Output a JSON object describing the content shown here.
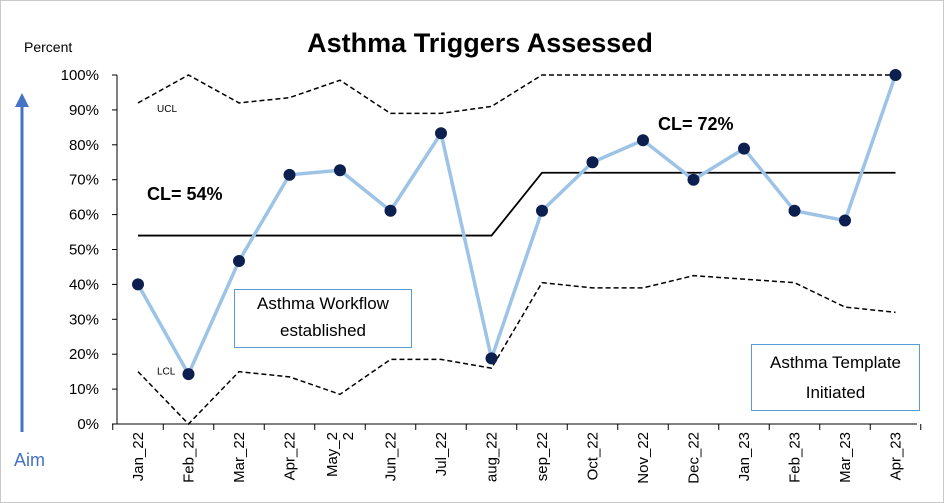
{
  "chart_data": {
    "type": "line",
    "title": "Asthma Triggers Assessed",
    "ylabel": "Percent",
    "ylim": [
      0,
      100
    ],
    "yticks": [
      "0%",
      "10%",
      "20%",
      "30%",
      "40%",
      "50%",
      "60%",
      "70%",
      "80%",
      "90%",
      "100%"
    ],
    "categories": [
      "Jan_22",
      "Feb_22",
      "Mar_22",
      "Apr_22",
      "May_2\n2",
      "Jun_22",
      "Jul_22",
      "aug_22",
      "sep_22",
      "Oct_22",
      "Nov_22",
      "Dec_22",
      "Jan_23",
      "Feb_23",
      "Mar_23",
      "Apr_23"
    ],
    "series": [
      {
        "values": [
          40,
          14.3,
          46.7,
          71.4,
          72.7,
          61.1,
          83.3,
          18.8,
          61.1,
          75,
          81.3,
          70,
          78.9,
          61.1,
          58.3,
          100
        ],
        "color": "#9dc3e6",
        "marker_color": "#0d1f4f"
      }
    ],
    "center_lines": [
      {
        "label": "CL= 54%",
        "value": 54,
        "from": "Jan_22",
        "to": "aug_22"
      },
      {
        "label": "CL= 72%",
        "value": 72,
        "from": "sep_22",
        "to": "Apr_23"
      }
    ],
    "ucl": {
      "label": "UCL",
      "values": [
        92,
        100,
        92,
        93.5,
        98.5,
        89,
        89,
        91,
        100,
        100,
        100,
        100,
        100,
        100,
        100,
        100
      ]
    },
    "lcl": {
      "label": "LCL",
      "values": [
        15,
        0,
        15,
        13.5,
        8.5,
        18.5,
        18.5,
        16,
        40.5,
        39,
        39,
        42.5,
        41.5,
        40.5,
        33.5,
        32
      ]
    },
    "annotations": [
      {
        "text_line1": "Asthma Workflow",
        "text_line2": "established"
      },
      {
        "text_line1": "Asthma Template",
        "text_line2": "Initiated"
      }
    ],
    "aim_label": "Aim",
    "grid": false
  }
}
